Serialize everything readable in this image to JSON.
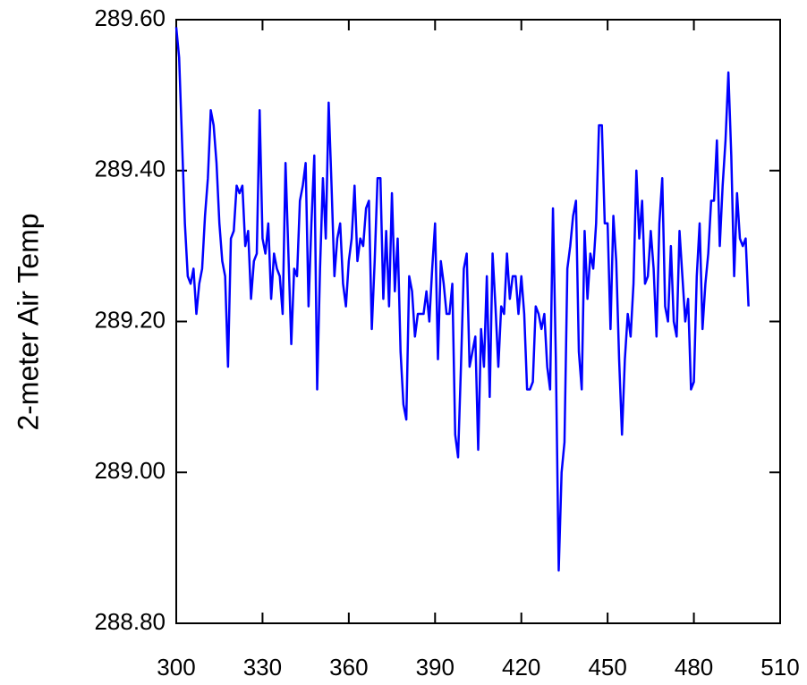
{
  "chart_data": {
    "type": "line",
    "y_label": "2-meter Air Temp",
    "x": [
      300,
      301,
      302,
      303,
      304,
      305,
      306,
      307,
      308,
      309,
      310,
      311,
      312,
      313,
      314,
      315,
      316,
      317,
      318,
      319,
      320,
      321,
      322,
      323,
      324,
      325,
      326,
      327,
      328,
      329,
      330,
      331,
      332,
      333,
      334,
      335,
      336,
      337,
      338,
      339,
      340,
      341,
      342,
      343,
      344,
      345,
      346,
      347,
      348,
      349,
      350,
      351,
      352,
      353,
      354,
      355,
      356,
      357,
      358,
      359,
      360,
      361,
      362,
      363,
      364,
      365,
      366,
      367,
      368,
      369,
      370,
      371,
      372,
      373,
      374,
      375,
      376,
      377,
      378,
      379,
      380,
      381,
      382,
      383,
      384,
      385,
      386,
      387,
      388,
      389,
      390,
      391,
      392,
      393,
      394,
      395,
      396,
      397,
      398,
      399,
      400,
      401,
      402,
      403,
      404,
      405,
      406,
      407,
      408,
      409,
      410,
      411,
      412,
      413,
      414,
      415,
      416,
      417,
      418,
      419,
      420,
      421,
      422,
      423,
      424,
      425,
      426,
      427,
      428,
      429,
      430,
      431,
      432,
      433,
      434,
      435,
      436,
      437,
      438,
      439,
      440,
      441,
      442,
      443,
      444,
      445,
      446,
      447,
      448,
      449,
      450,
      451,
      452,
      453,
      454,
      455,
      456,
      457,
      458,
      459,
      460,
      461,
      462,
      463,
      464,
      465,
      466,
      467,
      468,
      469,
      470,
      471,
      472,
      473,
      474,
      475,
      476,
      477,
      478,
      479,
      480,
      481,
      482,
      483,
      484,
      485,
      486,
      487,
      488,
      489,
      490,
      491,
      492,
      493,
      494,
      495,
      496,
      497,
      498,
      499
    ],
    "series": [
      {
        "name": "2-meter Air Temp",
        "color": "#0000ff",
        "values": [
          289.59,
          289.55,
          289.44,
          289.33,
          289.26,
          289.25,
          289.27,
          289.21,
          289.25,
          289.27,
          289.34,
          289.39,
          289.48,
          289.46,
          289.41,
          289.33,
          289.28,
          289.26,
          289.14,
          289.31,
          289.32,
          289.38,
          289.37,
          289.38,
          289.3,
          289.32,
          289.23,
          289.28,
          289.29,
          289.48,
          289.31,
          289.29,
          289.33,
          289.23,
          289.29,
          289.27,
          289.26,
          289.21,
          289.41,
          289.29,
          289.17,
          289.27,
          289.26,
          289.36,
          289.38,
          289.41,
          289.22,
          289.33,
          289.42,
          289.11,
          289.27,
          289.39,
          289.31,
          289.49,
          289.38,
          289.26,
          289.31,
          289.33,
          289.25,
          289.22,
          289.28,
          289.31,
          289.38,
          289.28,
          289.31,
          289.3,
          289.35,
          289.36,
          289.19,
          289.28,
          289.39,
          289.39,
          289.23,
          289.32,
          289.22,
          289.37,
          289.24,
          289.31,
          289.16,
          289.09,
          289.07,
          289.26,
          289.24,
          289.18,
          289.21,
          289.21,
          289.21,
          289.24,
          289.2,
          289.27,
          289.33,
          289.15,
          289.28,
          289.25,
          289.21,
          289.21,
          289.25,
          289.05,
          289.02,
          289.14,
          289.27,
          289.29,
          289.14,
          289.16,
          289.18,
          289.03,
          289.19,
          289.14,
          289.26,
          289.1,
          289.29,
          289.22,
          289.14,
          289.22,
          289.21,
          289.29,
          289.23,
          289.26,
          289.26,
          289.21,
          289.26,
          289.21,
          289.11,
          289.11,
          289.12,
          289.22,
          289.21,
          289.19,
          289.21,
          289.14,
          289.11,
          289.35,
          289.15,
          288.87,
          289.0,
          289.04,
          289.27,
          289.3,
          289.34,
          289.36,
          289.16,
          289.11,
          289.32,
          289.23,
          289.29,
          289.27,
          289.33,
          289.46,
          289.46,
          289.33,
          289.33,
          289.19,
          289.34,
          289.28,
          289.15,
          289.05,
          289.15,
          289.21,
          289.18,
          289.25,
          289.4,
          289.31,
          289.36,
          289.25,
          289.26,
          289.32,
          289.27,
          289.18,
          289.33,
          289.39,
          289.22,
          289.2,
          289.3,
          289.2,
          289.18,
          289.32,
          289.26,
          289.2,
          289.23,
          289.11,
          289.12,
          289.26,
          289.33,
          289.19,
          289.25,
          289.29,
          289.36,
          289.36,
          289.44,
          289.3,
          289.38,
          289.44,
          289.53,
          289.42,
          289.26,
          289.37,
          289.31,
          289.3,
          289.31,
          289.22
        ]
      }
    ],
    "xlim": [
      300,
      510
    ],
    "xticks": [
      300,
      330,
      360,
      390,
      420,
      450,
      480,
      510
    ],
    "ylim": [
      288.8,
      289.6
    ],
    "yticks": [
      {
        "value": 288.8,
        "label": "288.80"
      },
      {
        "value": 289,
        "label": "289.00"
      },
      {
        "value": 289.2,
        "label": "289.20"
      },
      {
        "value": 289.4,
        "label": "289.40"
      },
      {
        "value": 289.6,
        "label": "289.60"
      }
    ]
  }
}
